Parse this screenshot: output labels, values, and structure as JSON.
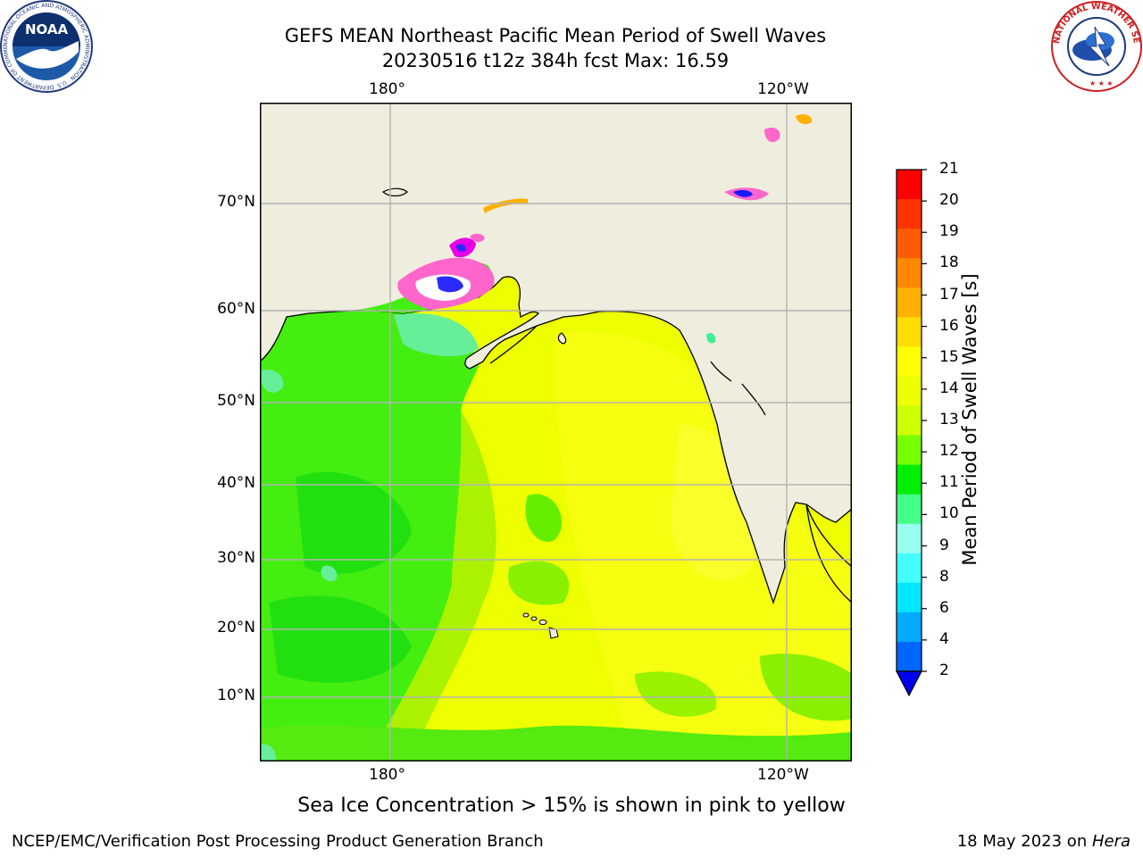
{
  "header": {
    "title_line1": "GEFS MEAN Northeast Pacific Mean Period of Swell Waves",
    "title_line2": "20230516 t12z 384h fcst   Max: 16.59"
  },
  "logos": {
    "left": {
      "name": "NOAA",
      "ring_text": "NATIONAL OCEANIC AND ATMOSPHERIC ADMINISTRATION · U.S. DEPARTMENT OF COMMERCE"
    },
    "right": {
      "name": "NATIONAL WEATHER SERVICE"
    }
  },
  "map": {
    "lon_labels_top": [
      "180°",
      "120°W"
    ],
    "lon_labels_bottom": [
      "180°",
      "120°W"
    ],
    "lat_labels": [
      "70°N",
      "60°N",
      "50°N",
      "40°N",
      "30°N",
      "20°N",
      "10°N"
    ],
    "colors": {
      "land": "#efedde",
      "ice_pink": "#ff66cc",
      "ice_magenta": "#e600e6",
      "ice_blue": "#1a1aff",
      "green": "#33ee11",
      "yellow_green": "#ccff00",
      "yellow": "#f2ff00",
      "light_yellow": "#ffff33",
      "mint": "#55ee88",
      "gridline": "#b3b3b3"
    }
  },
  "colorbar": {
    "label": "Mean Period of Swell Waves [s]",
    "ticks": [
      "21",
      "20",
      "19",
      "18",
      "17",
      "16",
      "15",
      "14",
      "13",
      "12",
      "11",
      "10",
      "9",
      "8",
      "6",
      "4",
      "2"
    ],
    "colors_top_to_bottom": [
      "#ff0000",
      "#ff3300",
      "#ff5a00",
      "#ff8800",
      "#ffb000",
      "#ffdd00",
      "#ffff00",
      "#eeff00",
      "#ccff00",
      "#77ff00",
      "#00ee00",
      "#44ff88",
      "#99ffee",
      "#44ffff",
      "#00e6ff",
      "#00aaff",
      "#0066ff"
    ],
    "extend_color": "#0000ee"
  },
  "caption": "Sea Ice Concentration > 15% is shown in pink to yellow",
  "footer": {
    "left": "NCEP/EMC/Verification Post Processing Product Generation Branch",
    "right_prefix": "18 May 2023 on ",
    "right_italic": "Hera"
  }
}
